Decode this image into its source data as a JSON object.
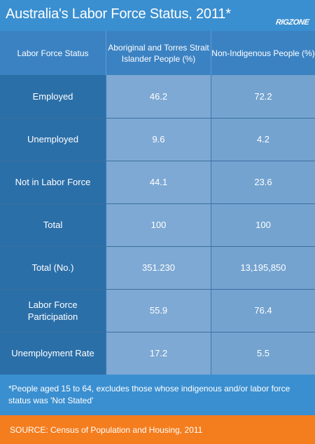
{
  "header": {
    "title": "Australia's Labor Force Status, 2011*",
    "brand": "RIGZONE"
  },
  "chart_data": {
    "type": "table",
    "title": "Australia's Labor Force Status, 2011*",
    "columns": [
      "Labor Force Status",
      "Aboriginal and Torres Strait Islander People (%)",
      "Non-Indigenous People (%)"
    ],
    "rows": [
      [
        "Employed",
        "46.2",
        "72.2"
      ],
      [
        "Unemployed",
        "9.6",
        "4.2"
      ],
      [
        "Not in Labor Force",
        "44.1",
        "23.6"
      ],
      [
        "Total",
        "100",
        "100"
      ],
      [
        "Total (No.)",
        "351.230",
        "13,195,850"
      ],
      [
        "Labor Force Participation",
        "55.9",
        "76.4"
      ],
      [
        "Unemployment Rate",
        "17.2",
        "5.5"
      ]
    ]
  },
  "footnote": "*People aged 15 to 64, excludes those whose indigenous and/or labor force status was 'Not Stated'",
  "source": "SOURCE: Census of Population and Housing, 2011",
  "colors": {
    "background": "#3a8fd0",
    "label_column": "#2b6fa8",
    "value_column": "#7ea9d4",
    "source_bar": "#f47d1e"
  }
}
